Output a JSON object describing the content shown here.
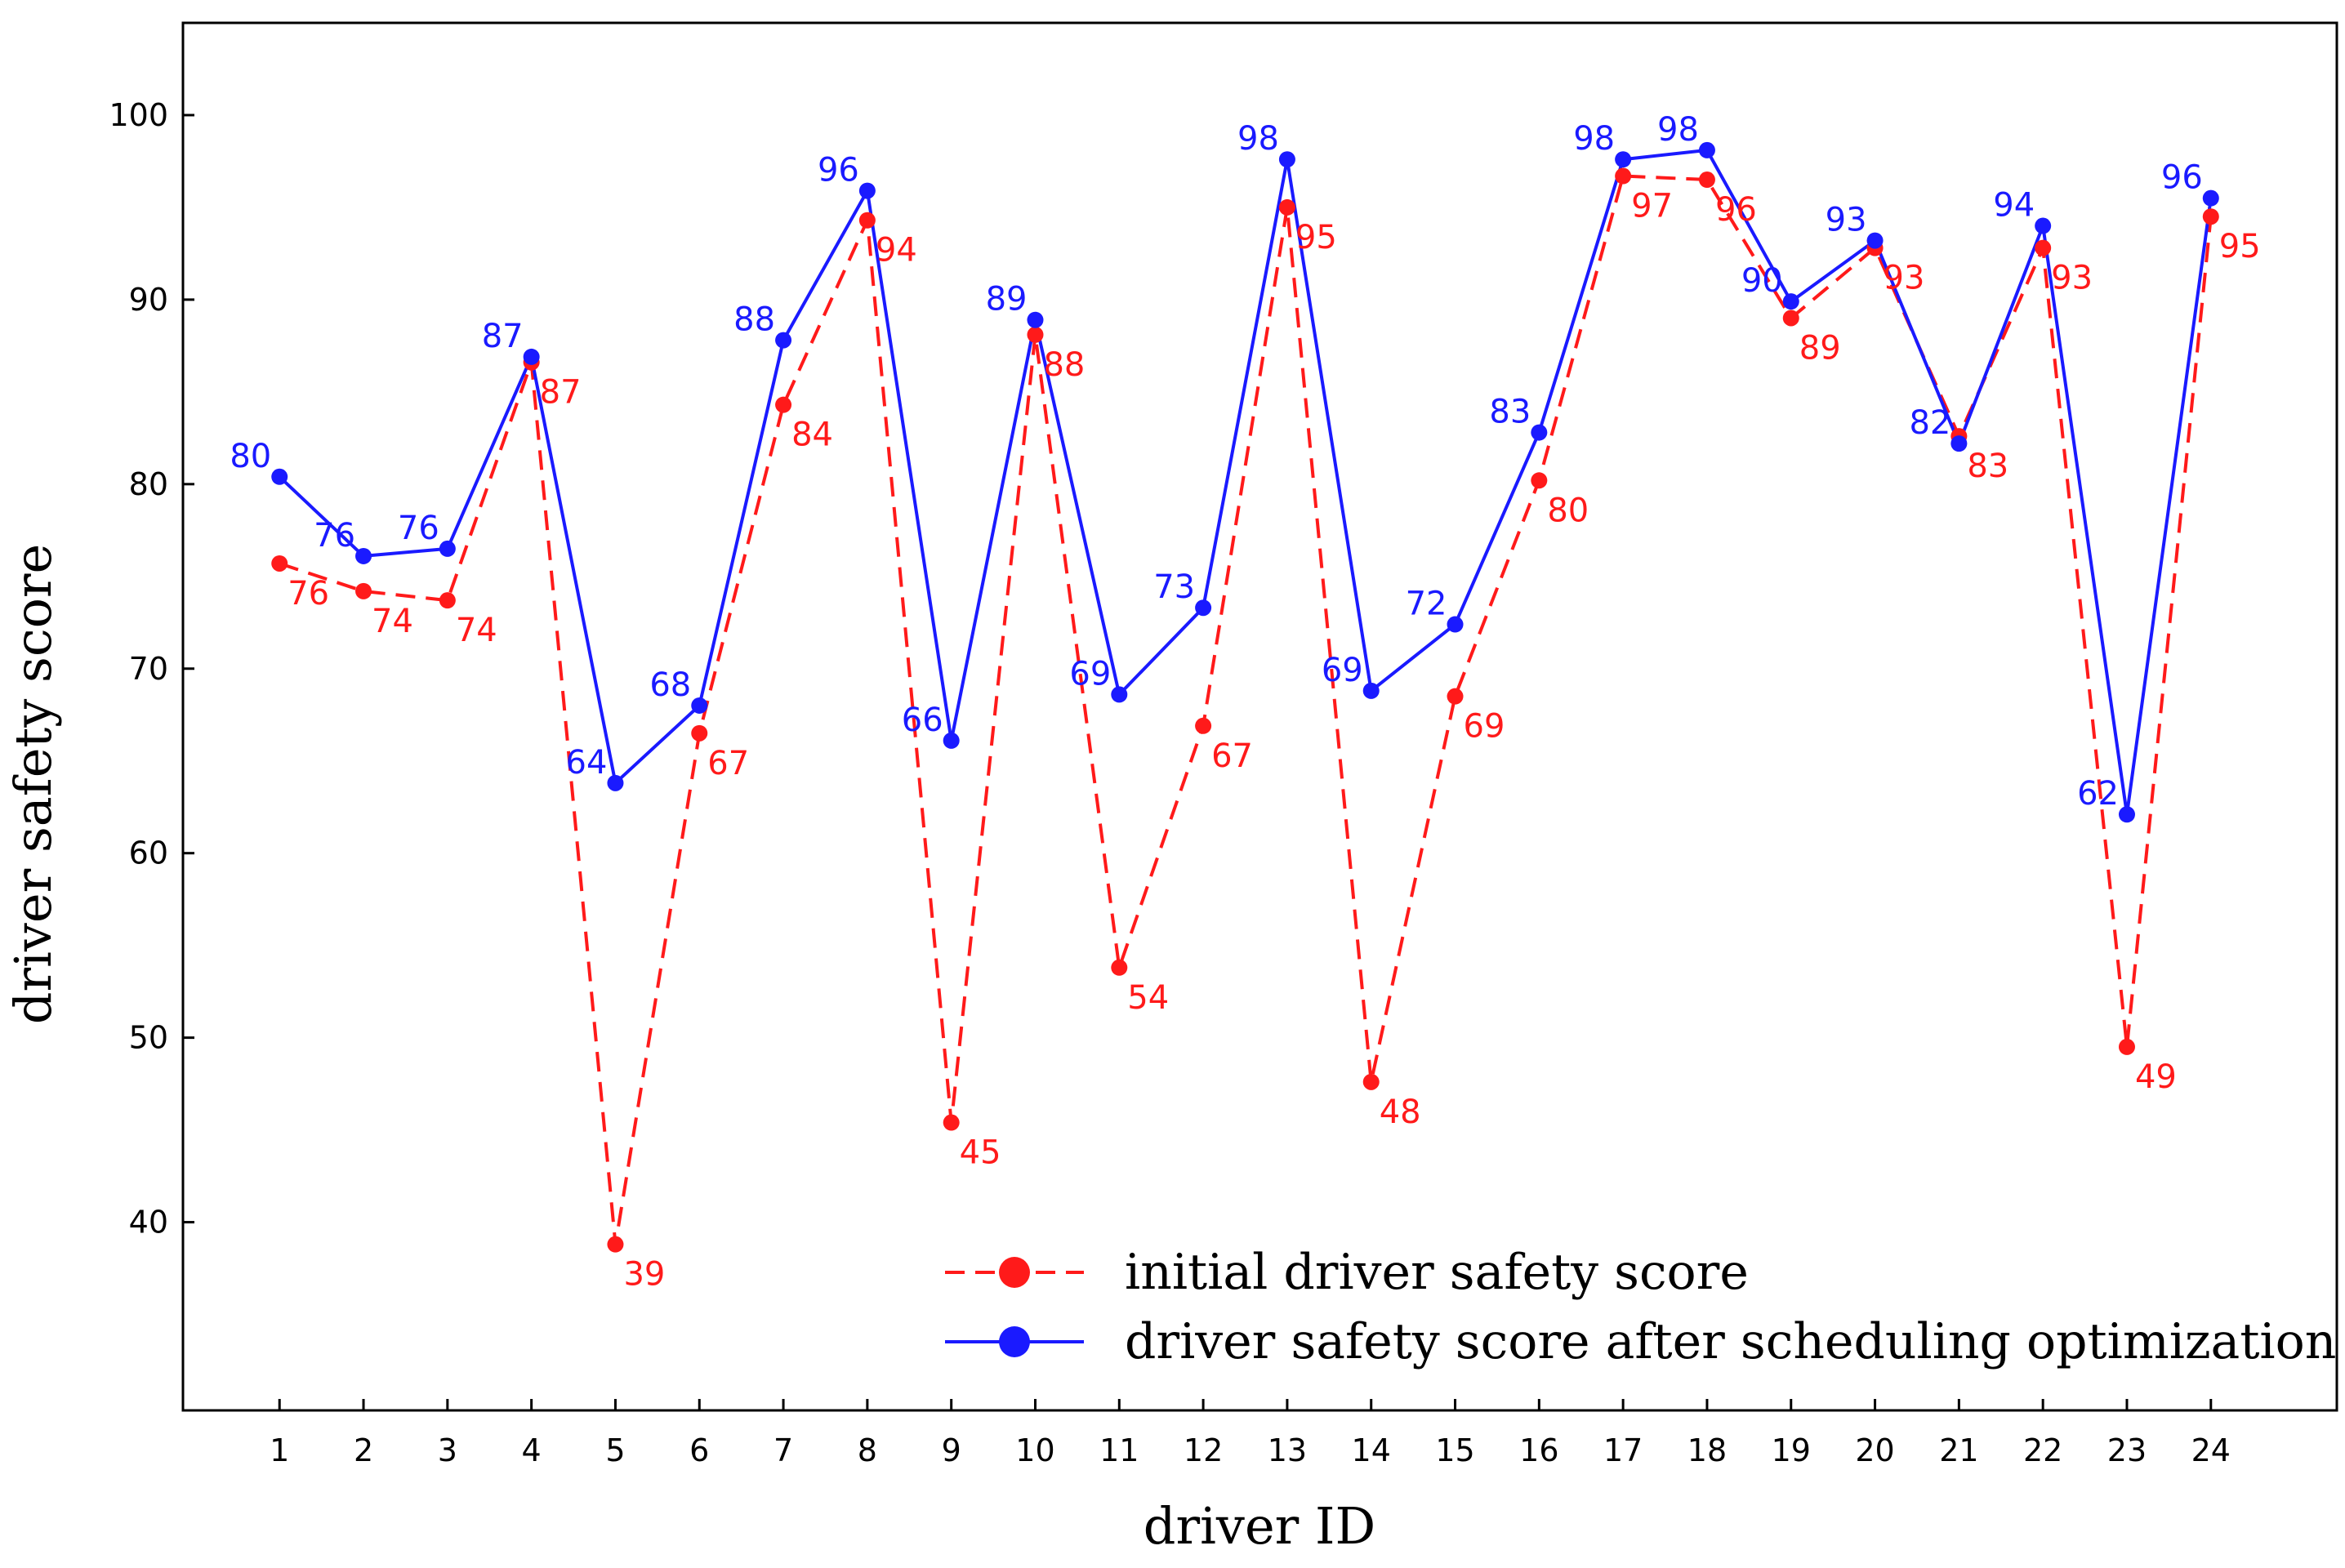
{
  "chart_data": {
    "type": "line",
    "xlabel": "driver ID",
    "ylabel": "driver safety score",
    "categories": [
      "1",
      "2",
      "3",
      "4",
      "5",
      "6",
      "7",
      "8",
      "9",
      "10",
      "11",
      "12",
      "13",
      "14",
      "15",
      "16",
      "17",
      "18",
      "19",
      "20",
      "21",
      "22",
      "23",
      "24"
    ],
    "x": [
      1,
      2,
      3,
      4,
      5,
      6,
      7,
      8,
      9,
      10,
      11,
      12,
      13,
      14,
      15,
      16,
      17,
      18,
      19,
      20,
      21,
      22,
      23,
      24
    ],
    "xlim": [
      -0.15,
      25.5
    ],
    "ylim": [
      29.8,
      105
    ],
    "yticks": [
      40,
      50,
      60,
      70,
      80,
      90,
      100
    ],
    "legend_position": "bottom-center",
    "grid": false,
    "series": [
      {
        "name": "initial driver safety score",
        "color": "#ff1a1a",
        "line_style": "dashed",
        "values": [
          75.7,
          74.2,
          73.7,
          86.6,
          38.8,
          66.5,
          84.3,
          94.3,
          45.4,
          88.1,
          53.8,
          66.9,
          95.0,
          47.6,
          68.5,
          80.2,
          96.7,
          96.5,
          89.0,
          92.8,
          82.6,
          92.8,
          49.5,
          94.5
        ],
        "labels": [
          "76",
          "74",
          "74",
          "87",
          "39",
          "67",
          "84",
          "94",
          "45",
          "88",
          "54",
          "67",
          "95",
          "48",
          "69",
          "80",
          "97",
          "96",
          "89",
          "93",
          "83",
          "93",
          "49",
          "95"
        ]
      },
      {
        "name": "driver safety score after scheduling optimization",
        "color": "#1a1aff",
        "line_style": "solid",
        "values": [
          80.4,
          76.1,
          76.5,
          86.9,
          63.8,
          68.0,
          87.8,
          95.9,
          66.1,
          88.9,
          68.6,
          73.3,
          97.6,
          68.8,
          72.4,
          82.8,
          97.6,
          98.1,
          89.9,
          93.2,
          82.2,
          94.0,
          62.1,
          95.5
        ],
        "labels": [
          "80",
          "76",
          "76",
          "87",
          "64",
          "68",
          "88",
          "96",
          "66",
          "89",
          "69",
          "73",
          "98",
          "69",
          "72",
          "83",
          "98",
          "98",
          "90",
          "93",
          "82",
          "94",
          "62",
          "96"
        ]
      }
    ]
  }
}
